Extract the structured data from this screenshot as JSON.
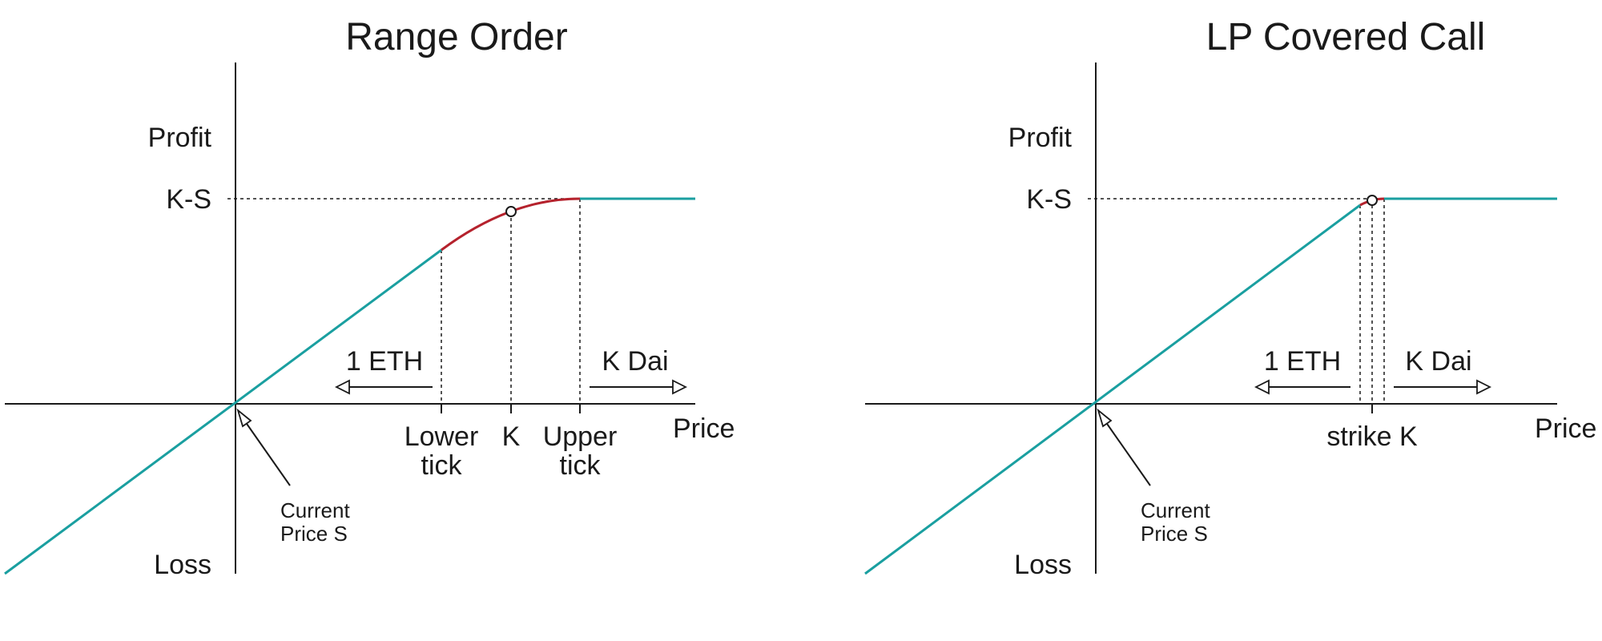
{
  "colors": {
    "payoff_line": "#1a9fa0",
    "curve": "#b5222d",
    "axis": "#1a1a1a"
  },
  "panels": [
    {
      "title": "Range Order",
      "y_top_label": "Profit",
      "y_bottom_label": "Loss",
      "x_label": "Price",
      "level_label": "K-S",
      "left_arrow_label": "1 ETH",
      "right_arrow_label": "K Dai",
      "tick_labels": [
        {
          "line1": "Lower",
          "line2": "tick"
        },
        {
          "line1": "K",
          "line2": ""
        },
        {
          "line1": "Upper",
          "line2": "tick"
        }
      ],
      "current_price_line1": "Current",
      "current_price_line2": "Price S"
    },
    {
      "title": "LP Covered Call",
      "y_top_label": "Profit",
      "y_bottom_label": "Loss",
      "x_label": "Price",
      "level_label": "K-S",
      "left_arrow_label": "1 ETH",
      "right_arrow_label": "K Dai",
      "tick_labels": [
        {
          "line1": "strike K",
          "line2": ""
        }
      ],
      "current_price_line1": "Current",
      "current_price_line2": "Price S"
    }
  ]
}
